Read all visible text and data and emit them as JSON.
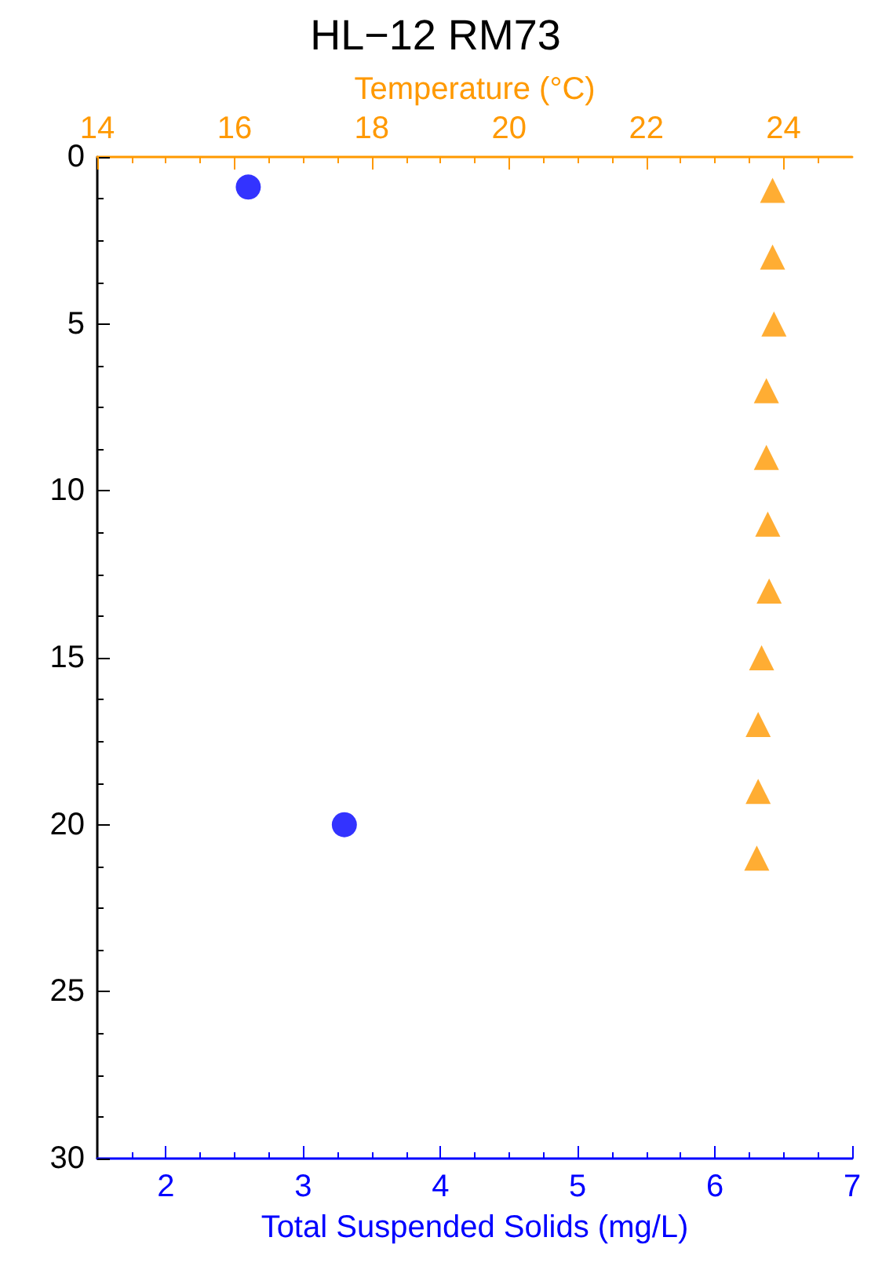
{
  "chart_data": {
    "type": "scatter",
    "title": "HL−12 RM73",
    "xlabel": "Total Suspended Solids (mg/L)",
    "x2label": "Temperature (°C)",
    "xlim": [
      1.5,
      7
    ],
    "xticks": [
      2,
      3,
      4,
      5,
      6,
      7
    ],
    "x2lim": [
      14,
      25
    ],
    "x2ticks": [
      14,
      16,
      18,
      20,
      22,
      24
    ],
    "ylim": [
      30,
      0
    ],
    "yticks": [
      0,
      5,
      10,
      15,
      20,
      25,
      30
    ],
    "series": [
      {
        "color": "#0000ff",
        "marker": "circle",
        "x": [
          2.6,
          3.3
        ],
        "values": [
          0.9,
          20
        ]
      },
      {
        "color": "#ff9900",
        "marker": "triangle",
        "axis": "x2",
        "x": [
          23.84,
          23.84,
          23.86,
          23.75,
          23.75,
          23.77,
          23.79,
          23.68,
          23.63,
          23.63,
          23.61
        ],
        "values": [
          1,
          3,
          5,
          7,
          9,
          11,
          13,
          15,
          17,
          19,
          21
        ]
      }
    ]
  }
}
